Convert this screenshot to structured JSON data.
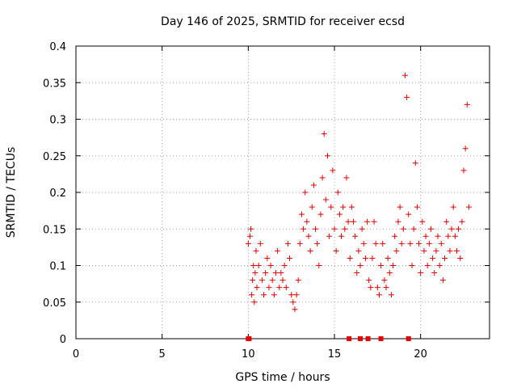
{
  "chart_data": {
    "type": "scatter",
    "title": "Day 146 of 2025, SRMTID for receiver ecsd",
    "xlabel": "GPS time / hours",
    "ylabel": "SRMTID / TECUs",
    "xlim": [
      0,
      24
    ],
    "ylim": [
      0,
      0.4
    ],
    "x_ticks": [
      0,
      5,
      10,
      15,
      20
    ],
    "x_tick_labels": [
      "0",
      "5",
      "10",
      "15",
      "20"
    ],
    "y_ticks": [
      0,
      0.05,
      0.1,
      0.15,
      0.2,
      0.25,
      0.3,
      0.35,
      0.4
    ],
    "y_tick_labels": [
      "0",
      "0.05",
      "0.1",
      "0.15",
      "0.2",
      "0.25",
      "0.3",
      "0.35",
      "0.4"
    ],
    "grid": true,
    "marker": "plus",
    "color": "#e60000",
    "zero_markers_x": [
      10.0,
      10.05,
      15.85,
      16.5,
      16.95,
      17.7,
      19.3
    ],
    "series": [
      {
        "name": "SRMTID",
        "points": [
          [
            10.0,
            0.13
          ],
          [
            10.1,
            0.14
          ],
          [
            10.15,
            0.15
          ],
          [
            10.2,
            0.06
          ],
          [
            10.25,
            0.08
          ],
          [
            10.3,
            0.1
          ],
          [
            10.35,
            0.05
          ],
          [
            10.4,
            0.09
          ],
          [
            10.45,
            0.12
          ],
          [
            10.5,
            0.07
          ],
          [
            10.6,
            0.1
          ],
          [
            10.7,
            0.13
          ],
          [
            10.8,
            0.08
          ],
          [
            10.9,
            0.06
          ],
          [
            11.0,
            0.09
          ],
          [
            11.1,
            0.11
          ],
          [
            11.2,
            0.07
          ],
          [
            11.3,
            0.1
          ],
          [
            11.4,
            0.08
          ],
          [
            11.5,
            0.06
          ],
          [
            11.6,
            0.09
          ],
          [
            11.7,
            0.12
          ],
          [
            11.8,
            0.07
          ],
          [
            11.9,
            0.09
          ],
          [
            12.0,
            0.08
          ],
          [
            12.1,
            0.1
          ],
          [
            12.2,
            0.07
          ],
          [
            12.3,
            0.13
          ],
          [
            12.4,
            0.11
          ],
          [
            12.5,
            0.06
          ],
          [
            12.6,
            0.05
          ],
          [
            12.7,
            0.04
          ],
          [
            12.8,
            0.06
          ],
          [
            12.9,
            0.08
          ],
          [
            13.0,
            0.13
          ],
          [
            13.1,
            0.17
          ],
          [
            13.2,
            0.15
          ],
          [
            13.3,
            0.2
          ],
          [
            13.4,
            0.16
          ],
          [
            13.5,
            0.14
          ],
          [
            13.6,
            0.12
          ],
          [
            13.7,
            0.18
          ],
          [
            13.8,
            0.21
          ],
          [
            13.9,
            0.15
          ],
          [
            14.0,
            0.13
          ],
          [
            14.1,
            0.1
          ],
          [
            14.2,
            0.17
          ],
          [
            14.3,
            0.22
          ],
          [
            14.4,
            0.28
          ],
          [
            14.5,
            0.19
          ],
          [
            14.6,
            0.25
          ],
          [
            14.7,
            0.14
          ],
          [
            14.8,
            0.18
          ],
          [
            14.9,
            0.23
          ],
          [
            15.0,
            0.15
          ],
          [
            15.1,
            0.12
          ],
          [
            15.2,
            0.2
          ],
          [
            15.3,
            0.17
          ],
          [
            15.4,
            0.14
          ],
          [
            15.5,
            0.18
          ],
          [
            15.6,
            0.15
          ],
          [
            15.7,
            0.22
          ],
          [
            15.8,
            0.16
          ],
          [
            15.9,
            0.11
          ],
          [
            16.0,
            0.18
          ],
          [
            16.1,
            0.16
          ],
          [
            16.2,
            0.14
          ],
          [
            16.3,
            0.09
          ],
          [
            16.4,
            0.12
          ],
          [
            16.5,
            0.1
          ],
          [
            16.6,
            0.15
          ],
          [
            16.7,
            0.13
          ],
          [
            16.8,
            0.11
          ],
          [
            16.9,
            0.16
          ],
          [
            17.0,
            0.08
          ],
          [
            17.1,
            0.07
          ],
          [
            17.2,
            0.11
          ],
          [
            17.3,
            0.16
          ],
          [
            17.4,
            0.13
          ],
          [
            17.5,
            0.07
          ],
          [
            17.6,
            0.06
          ],
          [
            17.7,
            0.1
          ],
          [
            17.8,
            0.13
          ],
          [
            17.9,
            0.08
          ],
          [
            18.0,
            0.07
          ],
          [
            18.1,
            0.11
          ],
          [
            18.2,
            0.09
          ],
          [
            18.3,
            0.06
          ],
          [
            18.4,
            0.1
          ],
          [
            18.5,
            0.14
          ],
          [
            18.6,
            0.12
          ],
          [
            18.7,
            0.16
          ],
          [
            18.8,
            0.18
          ],
          [
            18.9,
            0.13
          ],
          [
            19.0,
            0.15
          ],
          [
            19.1,
            0.36
          ],
          [
            19.2,
            0.33
          ],
          [
            19.3,
            0.17
          ],
          [
            19.4,
            0.13
          ],
          [
            19.5,
            0.1
          ],
          [
            19.6,
            0.15
          ],
          [
            19.7,
            0.24
          ],
          [
            19.8,
            0.18
          ],
          [
            19.9,
            0.13
          ],
          [
            20.0,
            0.09
          ],
          [
            20.1,
            0.16
          ],
          [
            20.2,
            0.12
          ],
          [
            20.3,
            0.14
          ],
          [
            20.4,
            0.1
          ],
          [
            20.5,
            0.13
          ],
          [
            20.6,
            0.15
          ],
          [
            20.7,
            0.11
          ],
          [
            20.8,
            0.09
          ],
          [
            20.9,
            0.12
          ],
          [
            21.0,
            0.14
          ],
          [
            21.1,
            0.1
          ],
          [
            21.2,
            0.13
          ],
          [
            21.3,
            0.08
          ],
          [
            21.4,
            0.11
          ],
          [
            21.5,
            0.16
          ],
          [
            21.6,
            0.14
          ],
          [
            21.7,
            0.12
          ],
          [
            21.8,
            0.15
          ],
          [
            21.9,
            0.18
          ],
          [
            22.0,
            0.14
          ],
          [
            22.1,
            0.12
          ],
          [
            22.2,
            0.15
          ],
          [
            22.3,
            0.11
          ],
          [
            22.4,
            0.16
          ],
          [
            22.5,
            0.23
          ],
          [
            22.6,
            0.26
          ],
          [
            22.7,
            0.32
          ],
          [
            22.8,
            0.18
          ]
        ]
      }
    ]
  }
}
